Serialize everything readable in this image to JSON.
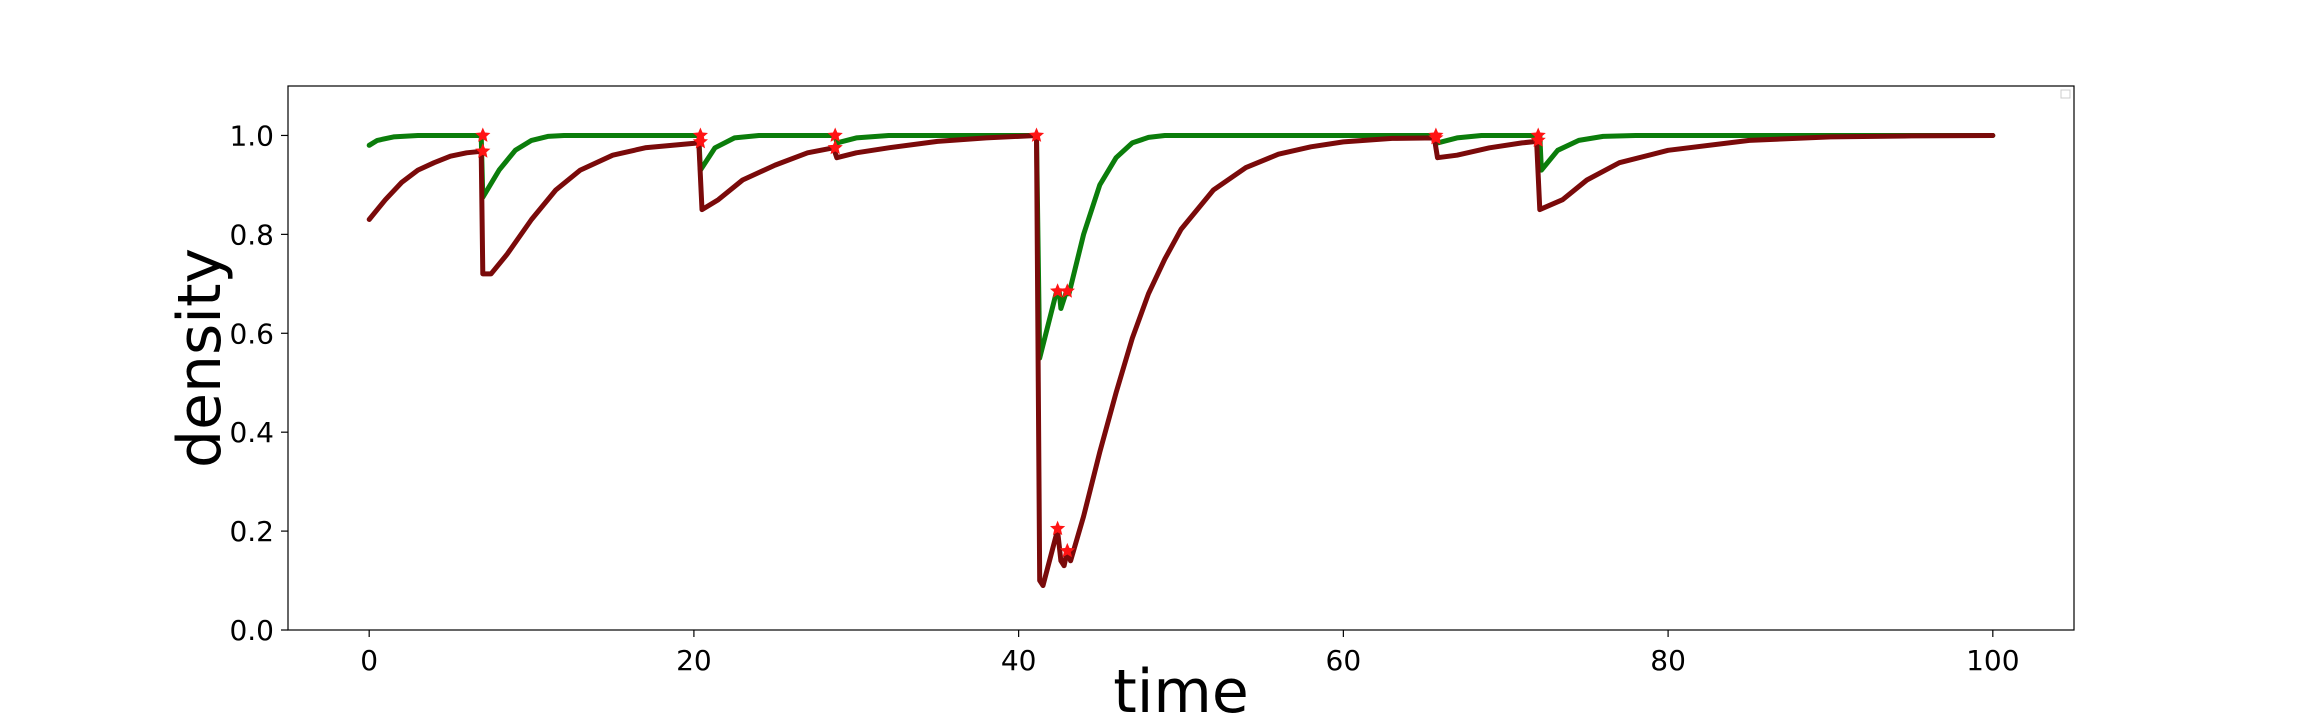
{
  "chart_data": {
    "type": "line",
    "title": "",
    "xlabel": "time",
    "ylabel": "density",
    "xlim": [
      -5,
      105
    ],
    "ylim": [
      0.0,
      1.1
    ],
    "x_ticks": [
      0,
      20,
      40,
      60,
      80,
      100
    ],
    "x_tick_labels": [
      "0",
      "20",
      "40",
      "60",
      "80",
      "100"
    ],
    "y_ticks": [
      0.0,
      0.2,
      0.4,
      0.6,
      0.8,
      1.0
    ],
    "y_tick_labels": [
      "0.0",
      "0.2",
      "0.4",
      "0.6",
      "0.8",
      "1.0"
    ],
    "grid": false,
    "legend": "top-right, empty",
    "series": [
      {
        "color": "#0b7d0b",
        "points": [
          [
            0,
            0.98
          ],
          [
            0.5,
            0.99
          ],
          [
            1.5,
            0.997
          ],
          [
            3,
            1.0
          ],
          [
            6.9,
            1.0
          ],
          [
            7,
            0.875
          ],
          [
            8,
            0.93
          ],
          [
            9,
            0.97
          ],
          [
            10,
            0.99
          ],
          [
            11,
            0.998
          ],
          [
            12,
            1.0
          ],
          [
            20.3,
            1.0
          ],
          [
            20.4,
            0.93
          ],
          [
            21.3,
            0.975
          ],
          [
            22.5,
            0.995
          ],
          [
            24,
            1.0
          ],
          [
            28.7,
            1.0
          ],
          [
            28.8,
            0.985
          ],
          [
            30,
            0.995
          ],
          [
            32,
            1.0
          ],
          [
            41.1,
            1.0
          ],
          [
            41.3,
            0.55
          ],
          [
            42.3,
            0.68
          ],
          [
            42.5,
            0.685
          ],
          [
            42.6,
            0.65
          ],
          [
            42.9,
            0.68
          ],
          [
            43.1,
            0.68
          ],
          [
            44,
            0.8
          ],
          [
            45,
            0.9
          ],
          [
            46,
            0.955
          ],
          [
            47,
            0.985
          ],
          [
            48,
            0.996
          ],
          [
            49,
            1.0
          ],
          [
            65.7,
            1.0
          ],
          [
            65.8,
            0.985
          ],
          [
            67,
            0.995
          ],
          [
            68.5,
            1.0
          ],
          [
            72.1,
            1.0
          ],
          [
            72.2,
            0.93
          ],
          [
            73.2,
            0.97
          ],
          [
            74.5,
            0.99
          ],
          [
            76,
            0.998
          ],
          [
            78,
            1.0
          ],
          [
            100,
            1.0
          ]
        ]
      },
      {
        "color": "#7a0a0a",
        "points": [
          [
            0,
            0.83
          ],
          [
            1,
            0.87
          ],
          [
            2,
            0.905
          ],
          [
            3,
            0.93
          ],
          [
            4,
            0.945
          ],
          [
            5,
            0.958
          ],
          [
            6,
            0.965
          ],
          [
            6.9,
            0.968
          ],
          [
            7,
            0.72
          ],
          [
            7.5,
            0.72
          ],
          [
            8.5,
            0.76
          ],
          [
            10,
            0.83
          ],
          [
            11.5,
            0.89
          ],
          [
            13,
            0.93
          ],
          [
            15,
            0.96
          ],
          [
            17,
            0.975
          ],
          [
            20.3,
            0.985
          ],
          [
            20.5,
            0.85
          ],
          [
            21.5,
            0.87
          ],
          [
            23,
            0.91
          ],
          [
            25,
            0.94
          ],
          [
            27,
            0.965
          ],
          [
            28.6,
            0.975
          ],
          [
            28.8,
            0.955
          ],
          [
            30,
            0.965
          ],
          [
            32,
            0.975
          ],
          [
            35,
            0.988
          ],
          [
            38,
            0.995
          ],
          [
            41.1,
            1.0
          ],
          [
            41.3,
            0.1
          ],
          [
            41.5,
            0.09
          ],
          [
            42.3,
            0.19
          ],
          [
            42.4,
            0.2
          ],
          [
            42.6,
            0.14
          ],
          [
            42.8,
            0.13
          ],
          [
            43.0,
            0.16
          ],
          [
            43.2,
            0.14
          ],
          [
            44,
            0.23
          ],
          [
            45,
            0.36
          ],
          [
            46,
            0.48
          ],
          [
            47,
            0.59
          ],
          [
            48,
            0.68
          ],
          [
            49,
            0.75
          ],
          [
            50,
            0.81
          ],
          [
            52,
            0.89
          ],
          [
            54,
            0.935
          ],
          [
            56,
            0.962
          ],
          [
            58,
            0.977
          ],
          [
            60,
            0.987
          ],
          [
            63,
            0.994
          ],
          [
            65.6,
            0.995
          ],
          [
            65.8,
            0.955
          ],
          [
            67,
            0.96
          ],
          [
            69,
            0.975
          ],
          [
            71,
            0.985
          ],
          [
            71.9,
            0.988
          ],
          [
            72.1,
            0.85
          ],
          [
            73.5,
            0.87
          ],
          [
            75,
            0.91
          ],
          [
            77,
            0.945
          ],
          [
            80,
            0.97
          ],
          [
            85,
            0.99
          ],
          [
            90,
            0.997
          ],
          [
            95,
            0.999
          ],
          [
            100,
            1.0
          ]
        ]
      }
    ],
    "markers": {
      "symbol": "star",
      "color": "#ff1414",
      "points": [
        [
          7,
          1.0
        ],
        [
          7,
          0.968
        ],
        [
          20.4,
          1.0
        ],
        [
          20.4,
          0.987
        ],
        [
          28.7,
          1.0
        ],
        [
          28.7,
          0.975
        ],
        [
          41.1,
          1.0
        ],
        [
          42.4,
          0.685
        ],
        [
          43.0,
          0.685
        ],
        [
          42.4,
          0.205
        ],
        [
          43.0,
          0.16
        ],
        [
          65.7,
          1.0
        ],
        [
          65.7,
          0.995
        ],
        [
          72.0,
          1.0
        ],
        [
          72.0,
          0.99
        ]
      ]
    }
  }
}
